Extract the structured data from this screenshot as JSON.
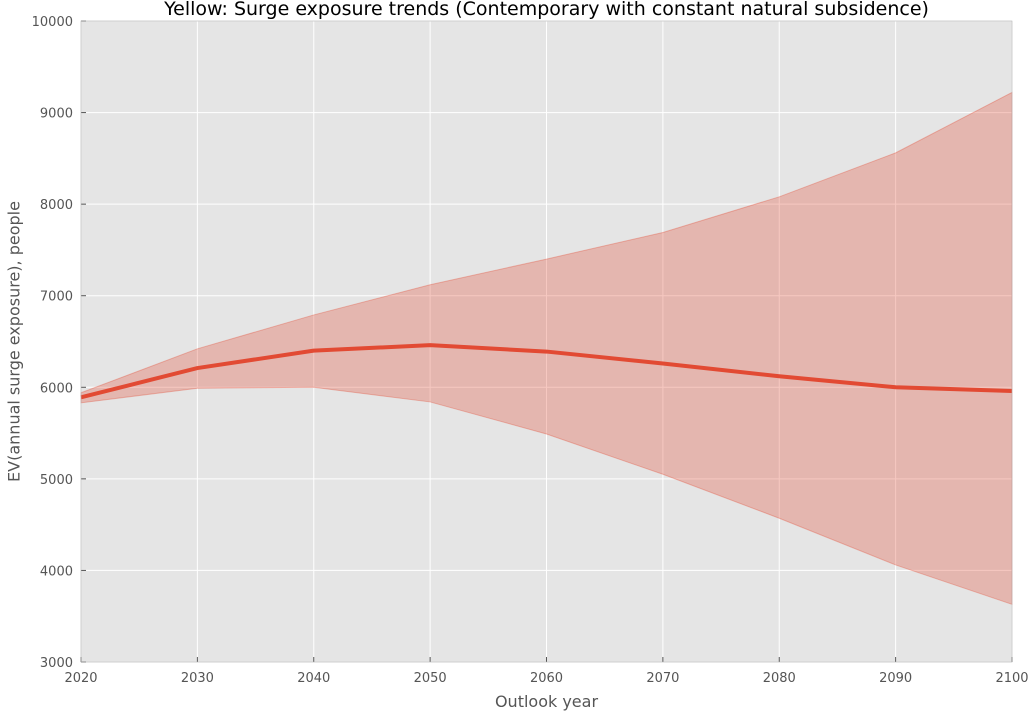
{
  "chart_data": {
    "type": "area",
    "title": "Yellow: Surge exposure trends (Contemporary with constant natural subsidence)",
    "xlabel": "Outlook year",
    "ylabel": "EV(annual surge exposure), people",
    "xlim": [
      2020,
      2100
    ],
    "ylim": [
      3000,
      10000
    ],
    "xticks": [
      2020,
      2030,
      2040,
      2050,
      2060,
      2070,
      2080,
      2090,
      2100
    ],
    "yticks": [
      3000,
      4000,
      5000,
      6000,
      7000,
      8000,
      9000,
      10000
    ],
    "grid": true,
    "x": [
      2020,
      2030,
      2040,
      2050,
      2060,
      2070,
      2080,
      2090,
      2100
    ],
    "series": [
      {
        "values": [
          5890,
          6210,
          6400,
          6460,
          6390,
          6260,
          6120,
          6000,
          5960
        ],
        "color": "#e24a33"
      }
    ],
    "band": {
      "lower": [
        5830,
        5990,
        6000,
        5840,
        5490,
        5050,
        4570,
        4060,
        3630
      ],
      "upper": [
        5940,
        6420,
        6790,
        7120,
        7400,
        7690,
        8080,
        8560,
        9220
      ],
      "color": "#e24a33",
      "opacity": 0.3
    },
    "colors": {
      "plot_background": "#e5e5e5",
      "grid": "#ffffff",
      "tick_text": "#555555"
    }
  }
}
